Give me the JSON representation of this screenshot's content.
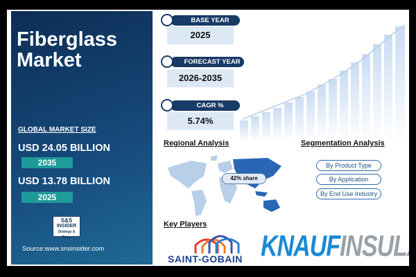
{
  "header": {
    "title": "Fiberglass Market"
  },
  "market_size": {
    "label": "GLOBAL MARKET SIZE",
    "items": [
      {
        "value": "USD 24.05 BILLION",
        "year": "2035"
      },
      {
        "value": "USD 13.78 BILLION",
        "year": "2025"
      }
    ]
  },
  "logo": {
    "line1": "S&S",
    "line2": "INSIDER",
    "line3": "Strategy & Stats"
  },
  "source": "Source:www.snsinsider.com",
  "stats": [
    {
      "label": "BASE YEAR",
      "value": "2025"
    },
    {
      "label": "FORECAST YEAR",
      "value": "2026-2035"
    },
    {
      "label": "CAGR %",
      "value": "5.74%"
    }
  ],
  "regional": {
    "title": "Regional Analysis",
    "annotation": "42% share"
  },
  "segmentation": {
    "title": "Segmentation Analysis",
    "items": [
      "By Product Type",
      "By Application",
      "By End Use Industry"
    ]
  },
  "key_players": {
    "title": "Key Players",
    "items": [
      "SAINT-GOBAIN",
      {
        "brand": "KNAUF",
        "suffix": "INSULATION"
      }
    ]
  }
}
